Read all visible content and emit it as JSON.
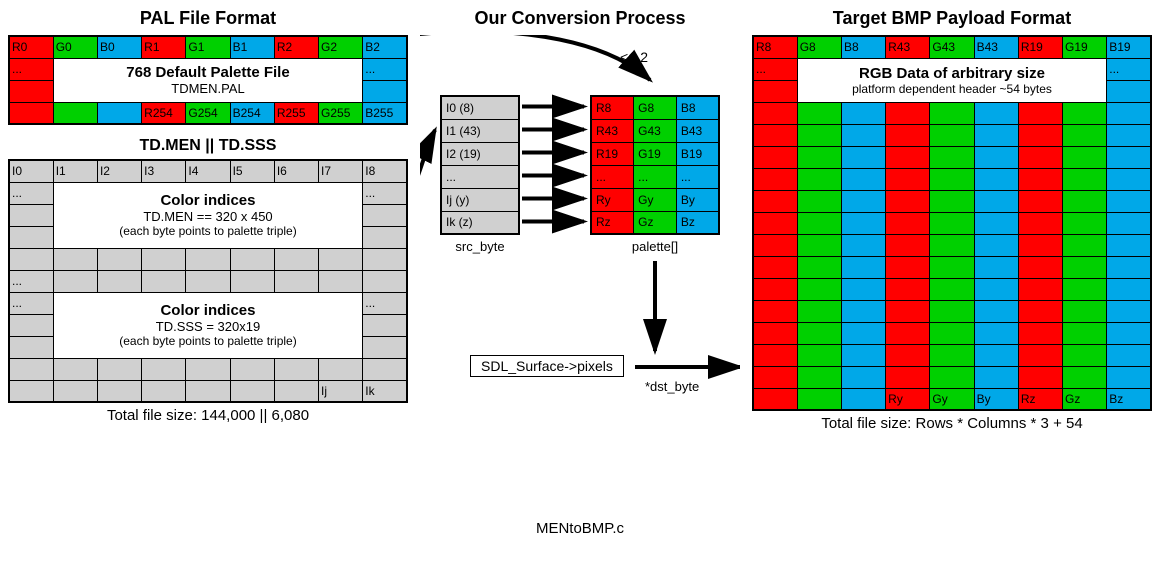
{
  "colors": {
    "r": "#ff0000",
    "g": "#00d000",
    "b": "#00a8e8",
    "grey": "#d0d0d0",
    "dgrey": "#b8b8b8",
    "black": "#000000",
    "white": "#ffffff"
  },
  "titles": {
    "left": "PAL File Format",
    "mid": "Our Conversion Process",
    "right": "Target BMP Payload Format",
    "sub_left2": "TD.MEN || TD.SSS"
  },
  "pal": {
    "row1": [
      "R0",
      "G0",
      "B0",
      "R1",
      "G1",
      "B1",
      "R2",
      "G2",
      "B2"
    ],
    "row1_colors": [
      "r",
      "g",
      "b",
      "r",
      "g",
      "b",
      "r",
      "g",
      "b"
    ],
    "info_box": {
      "dots_left": "...",
      "dots_right": "...",
      "title": "768 Default Palette File",
      "sub": "TDMEN.PAL"
    },
    "row_last": [
      "",
      "",
      "",
      "R254",
      "G254",
      "B254",
      "R255",
      "G255",
      "B255"
    ],
    "row_last_colors": [
      "r",
      "g",
      "b",
      "r",
      "g",
      "b",
      "r",
      "g",
      "b"
    ]
  },
  "men": {
    "row1": [
      "I0",
      "I1",
      "I2",
      "I3",
      "I4",
      "I5",
      "I6",
      "I7",
      "I8"
    ],
    "info1": {
      "dots_left": "...",
      "dots_right": "...",
      "title": "Color indices",
      "sub": "TD.MEN == 320 x 450",
      "note": "(each byte points to palette triple)"
    },
    "mid_dots": [
      "",
      "",
      "",
      "",
      "",
      "",
      "",
      "",
      ""
    ],
    "info2": {
      "dots_left": "...",
      "dots_right": "...",
      "title": "Color indices",
      "sub": "TD.SSS = 320x19",
      "note": "(each byte points to palette triple)"
    },
    "row_last": [
      "",
      "",
      "",
      "",
      "",
      "",
      "",
      "Ij",
      "Ik"
    ],
    "cap": "Total file size: 144,000 || 6,080"
  },
  "mid": {
    "shift": "<< 2",
    "src_rows": [
      "I0 (8)",
      "I1 (43)",
      "I2 (19)",
      "...",
      "Ij (y)",
      "Ik (z)"
    ],
    "pal_rows": [
      [
        "R8",
        "G8",
        "B8"
      ],
      [
        "R43",
        "G43",
        "B43"
      ],
      [
        "R19",
        "G19",
        "B19"
      ],
      [
        "...",
        "...",
        "..."
      ],
      [
        "Ry",
        "Gy",
        "By"
      ],
      [
        "Rz",
        "Gz",
        "Bz"
      ]
    ],
    "src_lbl": "src_byte",
    "pal_lbl": "palette[]",
    "sdl": "SDL_Surface->pixels",
    "dst_lbl": "*dst_byte",
    "cap": "MENtoBMP.c"
  },
  "bmp": {
    "row1": [
      "R8",
      "G8",
      "B8",
      "R43",
      "G43",
      "B43",
      "R19",
      "G19",
      "B19"
    ],
    "info": {
      "dots_left": "...",
      "dots_right": "...",
      "title": "RGB Data of arbitrary size",
      "sub": "platform dependent header ~54 bytes"
    },
    "row_labels_bottom": [
      "",
      "",
      "",
      "Ry",
      "Gy",
      "By",
      "Rz",
      "Gz",
      "Bz"
    ],
    "blank_row_count": 13,
    "cap": "Total file size: Rows * Columns * 3 + 54"
  }
}
